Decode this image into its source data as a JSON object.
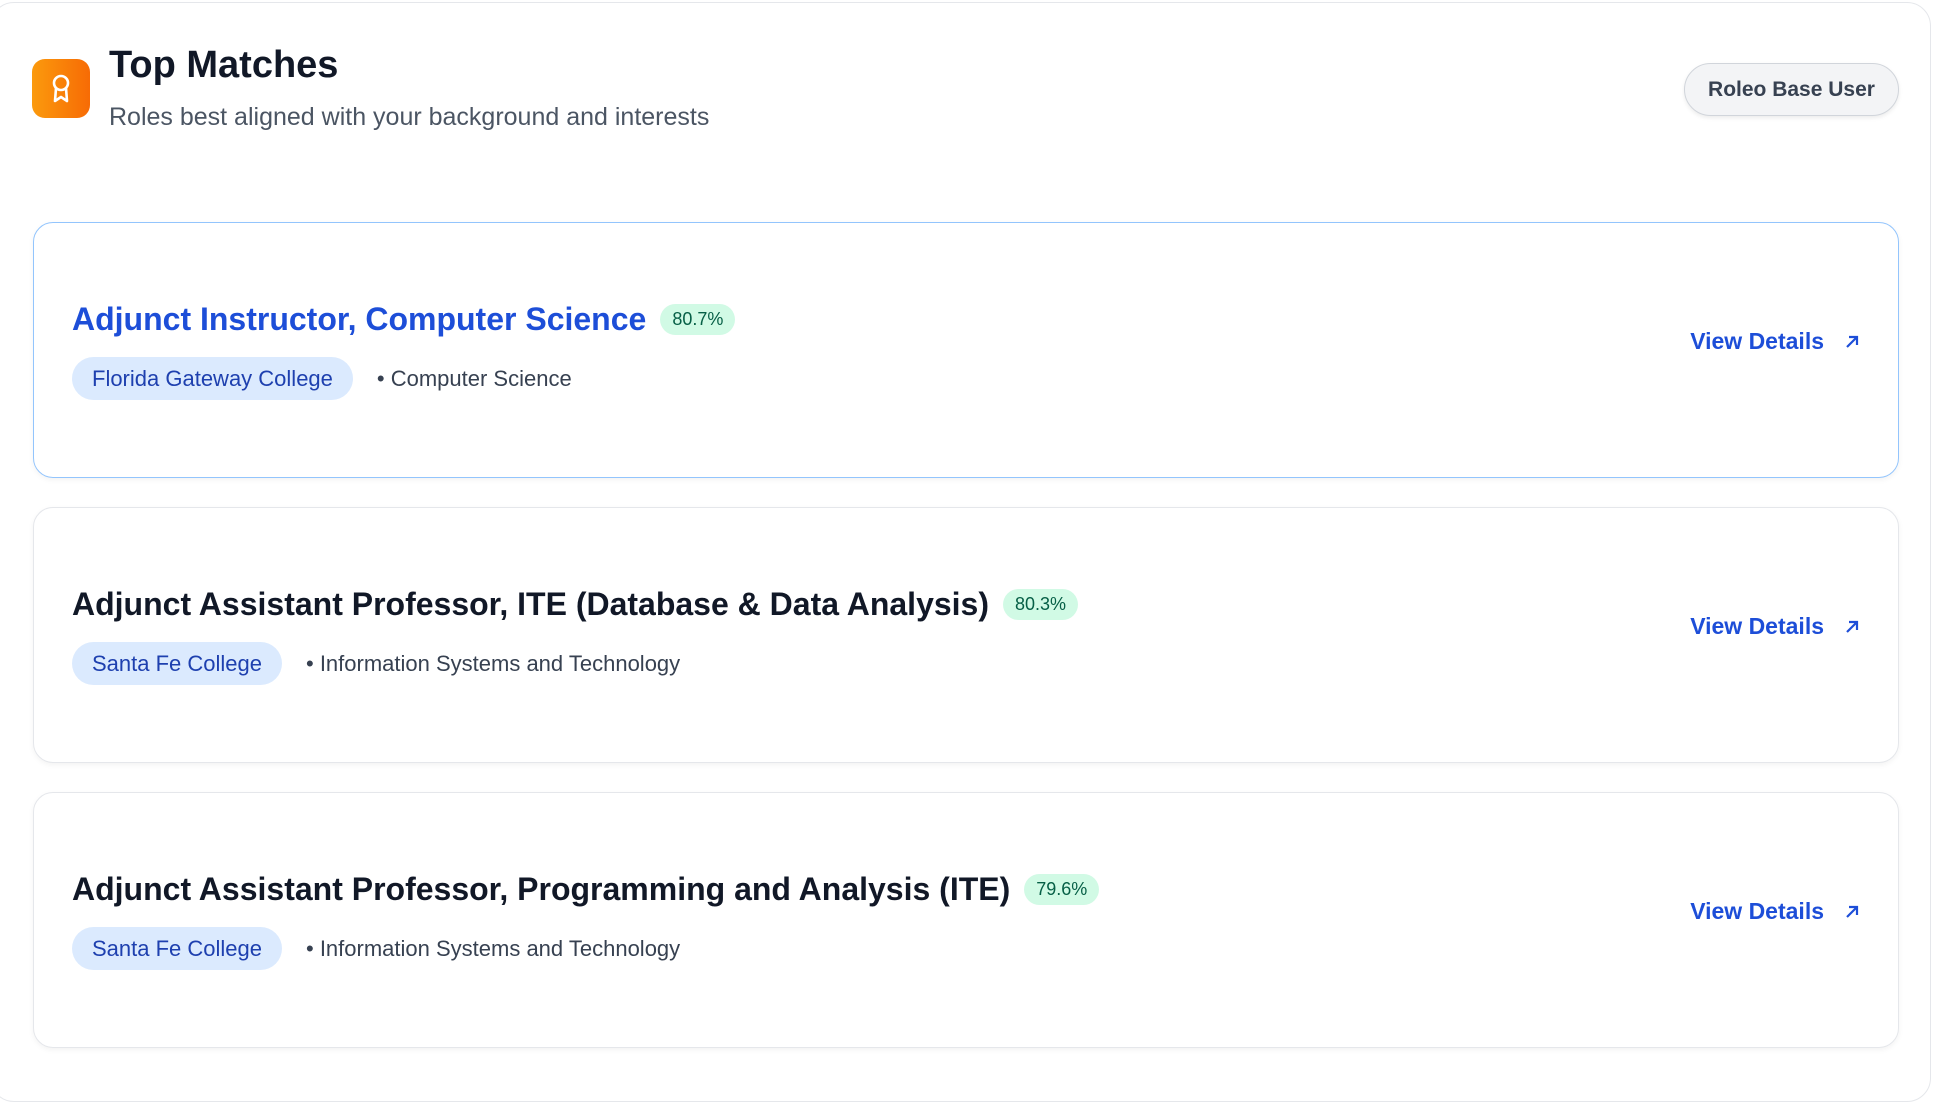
{
  "header": {
    "title": "Top Matches",
    "subtitle": "Roles best aligned with your background and interests",
    "user_badge": "Roleo Base User",
    "icon": "award-icon",
    "icon_color": "#f97316"
  },
  "matches": [
    {
      "title": "Adjunct Instructor, Computer Science",
      "score": "80.7%",
      "organization": "Florida Gateway College",
      "department": "• Computer Science",
      "action": "View Details"
    },
    {
      "title": "Adjunct Assistant Professor, ITE (Database & Data Analysis)",
      "score": "80.3%",
      "organization": "Santa Fe College",
      "department": "• Information Systems and Technology",
      "action": "View Details"
    },
    {
      "title": "Adjunct Assistant Professor, Programming and Analysis (ITE)",
      "score": "79.6%",
      "organization": "Santa Fe College",
      "department": "• Information Systems and Technology",
      "action": "View Details"
    }
  ],
  "colors": {
    "accent": "#1d4ed8",
    "score_bg": "#d1fae5",
    "pill_bg": "#dbeafe"
  }
}
